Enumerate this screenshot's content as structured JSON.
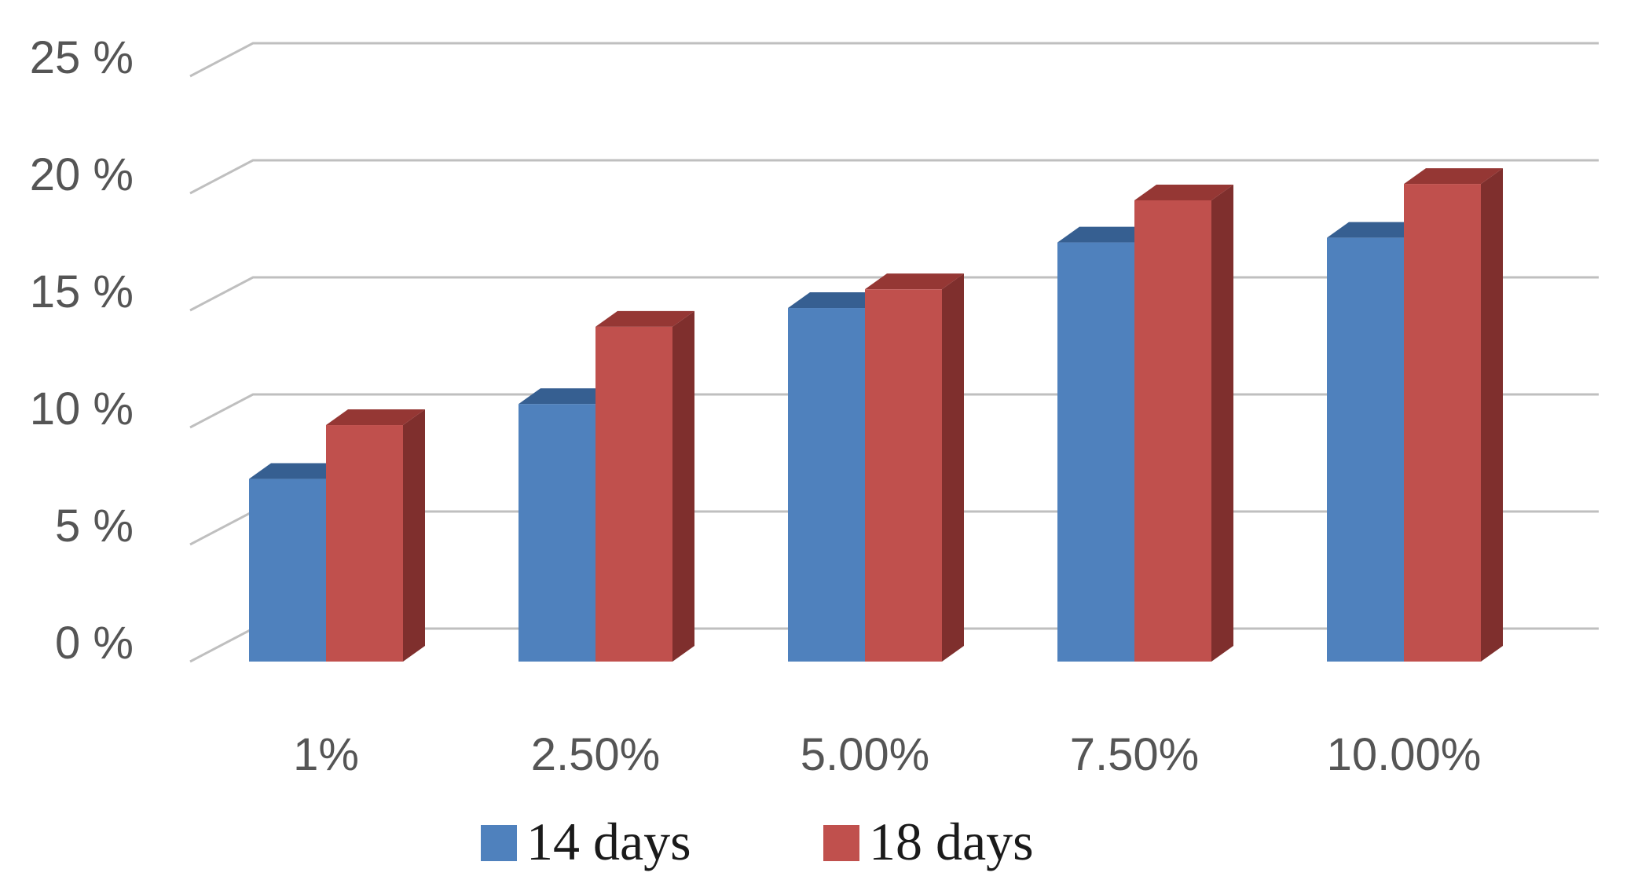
{
  "chart_data": {
    "type": "bar",
    "style": "3d-clustered-column",
    "categories": [
      "1%",
      "2.50%",
      "5.00%",
      "7.50%",
      "10.00%"
    ],
    "series": [
      {
        "name": "14 days",
        "values": [
          7.8,
          11.0,
          15.1,
          17.9,
          18.1
        ],
        "color": "#4f81bd",
        "side_color": "#385d8a",
        "top_color": "#365f91"
      },
      {
        "name": "18 days",
        "values": [
          10.1,
          14.3,
          15.9,
          19.7,
          20.4
        ],
        "color": "#c0504d",
        "side_color": "#7f2f2d",
        "top_color": "#953734"
      }
    ],
    "y_ticks": [
      "0 %",
      "5 %",
      "10 %",
      "15 %",
      "20 %",
      "25 %"
    ],
    "ylim": [
      0,
      25
    ],
    "grid": true,
    "legend_position": "bottom",
    "gridline_color": "#bfbfbf",
    "title": "",
    "xlabel": "",
    "ylabel": ""
  }
}
